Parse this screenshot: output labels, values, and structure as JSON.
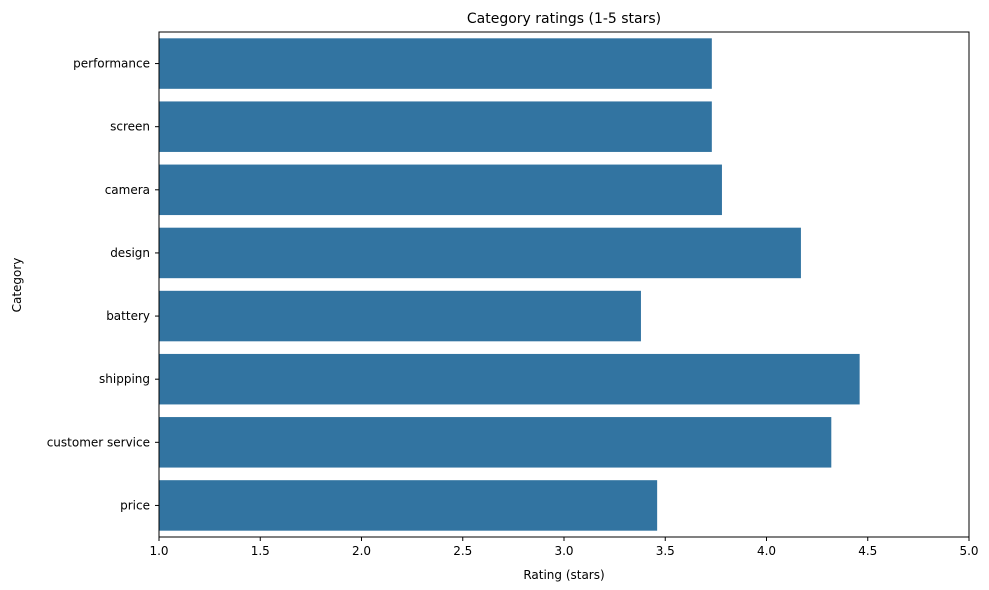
{
  "chart_data": {
    "type": "bar",
    "orientation": "horizontal",
    "title": "Category ratings (1-5 stars)",
    "xlabel": "Rating (stars)",
    "ylabel": "Category",
    "categories": [
      "performance",
      "screen",
      "camera",
      "design",
      "battery",
      "shipping",
      "customer service",
      "price"
    ],
    "values": [
      3.73,
      3.73,
      3.78,
      4.17,
      3.38,
      4.46,
      4.32,
      3.46
    ],
    "xlim": [
      1.0,
      5.0
    ],
    "xticks": [
      "1.0",
      "1.5",
      "2.0",
      "2.5",
      "3.0",
      "3.5",
      "4.0",
      "4.5",
      "5.0"
    ],
    "bar_color": "#3274a1",
    "grid": false,
    "legend": false
  }
}
